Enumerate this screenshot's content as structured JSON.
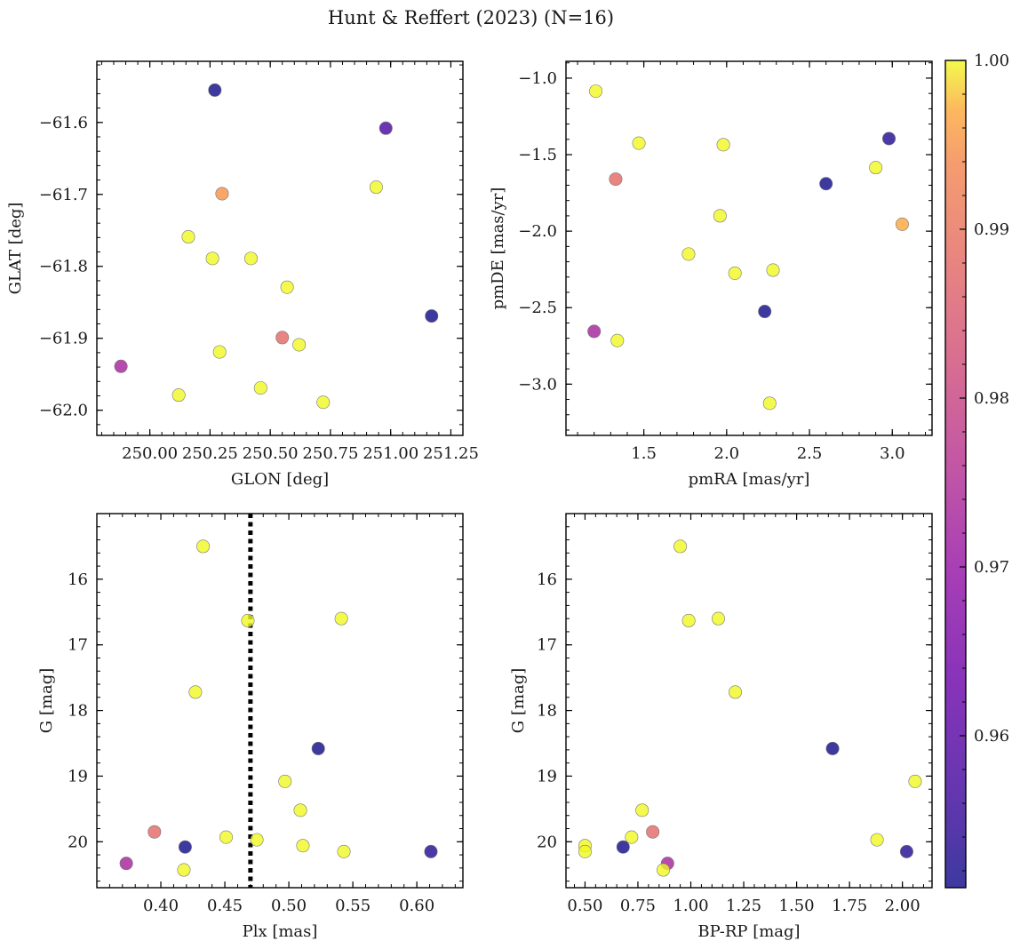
{
  "title": "Hunt & Reffert (2023) (N=16)",
  "colorbar": {
    "min": 0.951,
    "max": 1.0,
    "ticks": [
      0.96,
      0.97,
      0.98,
      0.99,
      1.0
    ],
    "tick_labels": [
      "0.96",
      "0.97",
      "0.98",
      "0.99",
      "1.00"
    ],
    "colormap": "plasma"
  },
  "chart_data": [
    {
      "id": "tl",
      "type": "scatter",
      "xlabel": "GLON [deg]",
      "ylabel": "GLAT [deg]",
      "xlim": [
        249.78,
        251.3
      ],
      "ylim": [
        -62.035,
        -61.515
      ],
      "xticks": [
        250.0,
        250.25,
        250.5,
        250.75,
        251.0,
        251.25
      ],
      "xtick_labels": [
        "250.00",
        "250.25",
        "250.50",
        "250.75",
        "251.00",
        "251.25"
      ],
      "yticks": [
        -62.0,
        -61.9,
        -61.8,
        -61.7,
        -61.6
      ],
      "ytick_labels": [
        "−62.0",
        "−61.9",
        "−61.8",
        "−61.7",
        "−61.6"
      ],
      "points": [
        {
          "x": 250.27,
          "y": -61.555,
          "c": 0.951
        },
        {
          "x": 250.98,
          "y": -61.608,
          "c": 0.958
        },
        {
          "x": 250.3,
          "y": -61.699,
          "c": 0.995
        },
        {
          "x": 250.94,
          "y": -61.69,
          "c": 1.0
        },
        {
          "x": 250.16,
          "y": -61.759,
          "c": 1.0
        },
        {
          "x": 250.26,
          "y": -61.789,
          "c": 1.0
        },
        {
          "x": 250.42,
          "y": -61.789,
          "c": 1.0
        },
        {
          "x": 250.57,
          "y": -61.829,
          "c": 1.0
        },
        {
          "x": 251.17,
          "y": -61.869,
          "c": 0.951
        },
        {
          "x": 250.55,
          "y": -61.899,
          "c": 0.988
        },
        {
          "x": 250.62,
          "y": -61.909,
          "c": 1.0
        },
        {
          "x": 249.88,
          "y": -61.939,
          "c": 0.973
        },
        {
          "x": 250.29,
          "y": -61.919,
          "c": 1.0
        },
        {
          "x": 250.46,
          "y": -61.969,
          "c": 1.0
        },
        {
          "x": 250.12,
          "y": -61.979,
          "c": 1.0
        },
        {
          "x": 250.72,
          "y": -61.989,
          "c": 1.0
        }
      ]
    },
    {
      "id": "tr",
      "type": "scatter",
      "xlabel": "pmRA [mas/yr]",
      "ylabel": "pmDE [mas/yr]",
      "xlim": [
        1.03,
        3.24
      ],
      "ylim": [
        -3.335,
        -0.89
      ],
      "xticks": [
        1.5,
        2.0,
        2.5,
        3.0
      ],
      "xtick_labels": [
        "1.5",
        "2.0",
        "2.5",
        "3.0"
      ],
      "yticks": [
        -3.0,
        -2.5,
        -2.0,
        -1.5,
        -1.0
      ],
      "ytick_labels": [
        "−3.0",
        "−2.5",
        "−2.0",
        "−1.5",
        "−1.0"
      ],
      "points": [
        {
          "x": 1.21,
          "y": -1.085,
          "c": 1.0
        },
        {
          "x": 1.47,
          "y": -1.425,
          "c": 1.0
        },
        {
          "x": 1.98,
          "y": -1.435,
          "c": 1.0
        },
        {
          "x": 2.98,
          "y": -1.395,
          "c": 0.953
        },
        {
          "x": 2.9,
          "y": -1.585,
          "c": 1.0
        },
        {
          "x": 1.33,
          "y": -1.66,
          "c": 0.988
        },
        {
          "x": 2.6,
          "y": -1.69,
          "c": 0.951
        },
        {
          "x": 1.96,
          "y": -1.9,
          "c": 1.0
        },
        {
          "x": 3.06,
          "y": -1.955,
          "c": 0.997
        },
        {
          "x": 1.77,
          "y": -2.15,
          "c": 1.0
        },
        {
          "x": 2.28,
          "y": -2.255,
          "c": 1.0
        },
        {
          "x": 2.05,
          "y": -2.275,
          "c": 1.0
        },
        {
          "x": 2.23,
          "y": -2.525,
          "c": 0.951
        },
        {
          "x": 1.2,
          "y": -2.655,
          "c": 0.973
        },
        {
          "x": 1.34,
          "y": -2.715,
          "c": 1.0
        },
        {
          "x": 2.26,
          "y": -3.125,
          "c": 1.0
        }
      ]
    },
    {
      "id": "bl",
      "type": "scatter",
      "xlabel": "Plx [mas]",
      "ylabel": "G [mag]",
      "xlim": [
        0.35,
        0.636
      ],
      "ylim": [
        20.7,
        15.0
      ],
      "xticks": [
        0.4,
        0.45,
        0.5,
        0.55,
        0.6
      ],
      "xtick_labels": [
        "0.40",
        "0.45",
        "0.50",
        "0.55",
        "0.60"
      ],
      "yticks": [
        16,
        17,
        18,
        19,
        20
      ],
      "ytick_labels": [
        "16",
        "17",
        "18",
        "19",
        "20"
      ],
      "vline": 0.47,
      "points": [
        {
          "x": 0.433,
          "y": 15.5,
          "c": 1.0
        },
        {
          "x": 0.468,
          "y": 16.63,
          "c": 1.0
        },
        {
          "x": 0.541,
          "y": 16.6,
          "c": 1.0
        },
        {
          "x": 0.427,
          "y": 17.72,
          "c": 1.0
        },
        {
          "x": 0.523,
          "y": 18.58,
          "c": 0.951
        },
        {
          "x": 0.497,
          "y": 19.08,
          "c": 1.0
        },
        {
          "x": 0.509,
          "y": 19.52,
          "c": 1.0
        },
        {
          "x": 0.395,
          "y": 19.85,
          "c": 0.988
        },
        {
          "x": 0.451,
          "y": 19.93,
          "c": 1.0
        },
        {
          "x": 0.475,
          "y": 19.97,
          "c": 1.0
        },
        {
          "x": 0.419,
          "y": 20.08,
          "c": 0.951
        },
        {
          "x": 0.511,
          "y": 20.06,
          "c": 1.0
        },
        {
          "x": 0.543,
          "y": 20.15,
          "c": 1.0
        },
        {
          "x": 0.611,
          "y": 20.15,
          "c": 0.953
        },
        {
          "x": 0.373,
          "y": 20.33,
          "c": 0.973
        },
        {
          "x": 0.418,
          "y": 20.43,
          "c": 1.0
        }
      ]
    },
    {
      "id": "br",
      "type": "scatter",
      "xlabel": "BP-RP [mag]",
      "ylabel": "G [mag]",
      "xlim": [
        0.41,
        2.14
      ],
      "ylim": [
        20.7,
        15.0
      ],
      "xticks": [
        0.5,
        0.75,
        1.0,
        1.25,
        1.5,
        1.75,
        2.0
      ],
      "xtick_labels": [
        "0.50",
        "0.75",
        "1.00",
        "1.25",
        "1.50",
        "1.75",
        "2.00"
      ],
      "yticks": [
        16,
        17,
        18,
        19,
        20
      ],
      "ytick_labels": [
        "16",
        "17",
        "18",
        "19",
        "20"
      ],
      "points": [
        {
          "x": 0.95,
          "y": 15.5,
          "c": 1.0
        },
        {
          "x": 0.99,
          "y": 16.63,
          "c": 1.0
        },
        {
          "x": 1.13,
          "y": 16.6,
          "c": 1.0
        },
        {
          "x": 1.21,
          "y": 17.72,
          "c": 1.0
        },
        {
          "x": 1.67,
          "y": 18.58,
          "c": 0.951
        },
        {
          "x": 2.06,
          "y": 19.08,
          "c": 1.0
        },
        {
          "x": 0.77,
          "y": 19.52,
          "c": 1.0
        },
        {
          "x": 0.82,
          "y": 19.85,
          "c": 0.988
        },
        {
          "x": 0.72,
          "y": 19.93,
          "c": 1.0
        },
        {
          "x": 1.88,
          "y": 19.97,
          "c": 1.0
        },
        {
          "x": 0.5,
          "y": 20.06,
          "c": 1.0
        },
        {
          "x": 0.68,
          "y": 20.08,
          "c": 0.951
        },
        {
          "x": 0.5,
          "y": 20.15,
          "c": 1.0
        },
        {
          "x": 2.02,
          "y": 20.15,
          "c": 0.953
        },
        {
          "x": 0.89,
          "y": 20.33,
          "c": 0.973
        },
        {
          "x": 0.87,
          "y": 20.43,
          "c": 1.0
        }
      ]
    }
  ]
}
